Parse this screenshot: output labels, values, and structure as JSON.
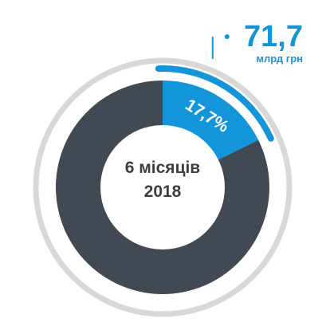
{
  "chart_data": {
    "type": "pie",
    "style": "donut",
    "slices": [
      {
        "value": 17.7,
        "label": "17,7%",
        "color": "#1296d9"
      },
      {
        "value": 82.3,
        "label": "",
        "color": "#414a52"
      }
    ],
    "center_label": {
      "line1": "6 місяців",
      "line2": "2018"
    },
    "callout": {
      "value": "71,7",
      "unit": "млрд грн",
      "color": "#1296d9"
    },
    "ring_color": "#d8d8d8"
  }
}
